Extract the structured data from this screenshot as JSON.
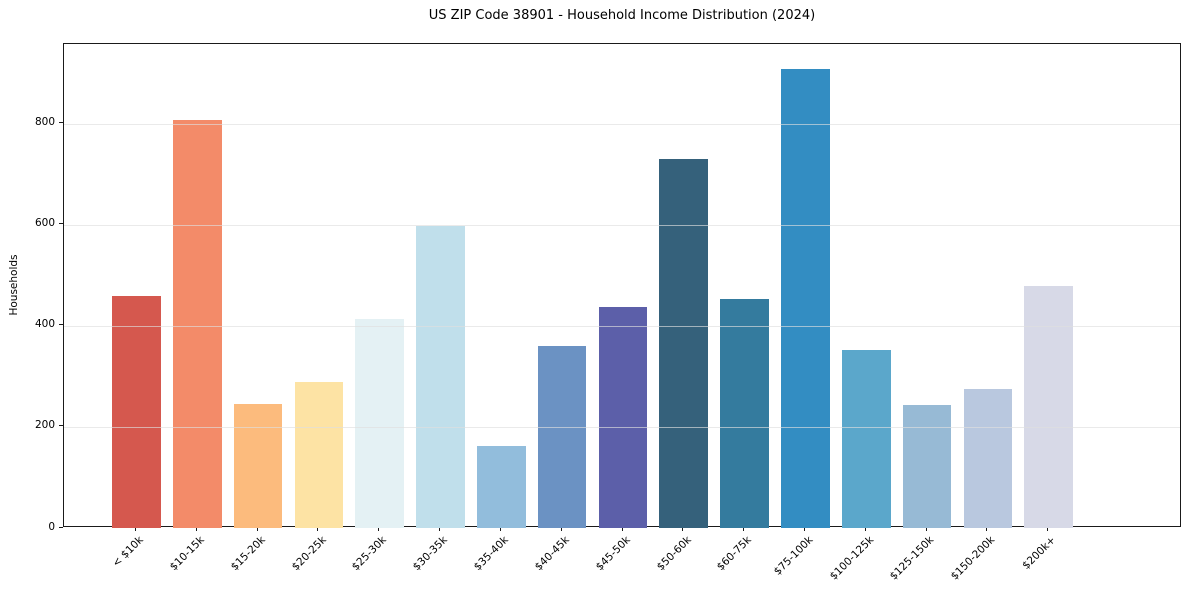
{
  "chart_data": {
    "type": "bar",
    "title": "US ZIP Code 38901 - Household Income Distribution (2024)",
    "xlabel": "",
    "ylabel": "Households",
    "categories": [
      "< $10k",
      "$10-15k",
      "$15-20k",
      "$20-25k",
      "$25-30k",
      "$30-35k",
      "$35-40k",
      "$40-45k",
      "$45-50k",
      "$50-60k",
      "$60-75k",
      "$75-100k",
      "$100-125k",
      "$125-150k",
      "$150-200k",
      "$200k+"
    ],
    "values": [
      460,
      807,
      246,
      288,
      414,
      598,
      163,
      361,
      437,
      731,
      453,
      909,
      352,
      243,
      276,
      479
    ],
    "bar_colors": [
      "#d5584e",
      "#f38b69",
      "#fcbb7d",
      "#fde3a4",
      "#e4f1f4",
      "#c0dfeb",
      "#92bddc",
      "#6b92c3",
      "#5c5fa9",
      "#35617b",
      "#347b9e",
      "#338dc2",
      "#5ba7cb",
      "#97bad5",
      "#b9c8df",
      "#d7d9e7"
    ],
    "ylim": [
      0,
      958
    ],
    "yticks": [
      0,
      200,
      400,
      600,
      800
    ],
    "x_tick_rotation_deg": 45,
    "grid": "horizontal",
    "legend": "none",
    "spine_color": "#1a1a1a",
    "background_color": "#ffffff"
  }
}
